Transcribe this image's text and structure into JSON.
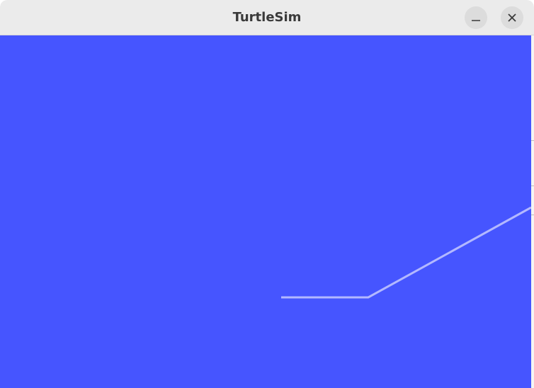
{
  "window": {
    "title": "TurtleSim",
    "minimize_icon": "minimize-icon",
    "close_icon": "close-icon"
  },
  "canvas": {
    "background_color": "#4655ff",
    "pen_color": "#b3b8ff"
  }
}
